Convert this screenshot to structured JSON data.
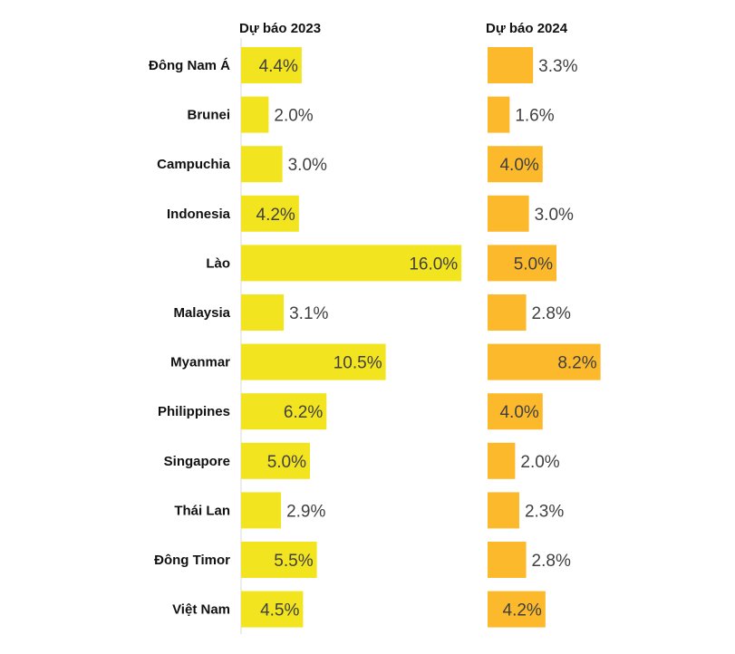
{
  "chart_data": {
    "type": "bar",
    "orientation": "horizontal",
    "categories": [
      "Đông Nam Á",
      "Brunei",
      "Campuchia",
      "Indonesia",
      "Lào",
      "Malaysia",
      "Myanmar",
      "Philippines",
      "Singapore",
      "Thái Lan",
      "Đông Timor",
      "Việt Nam"
    ],
    "series": [
      {
        "name": "Dự báo 2023",
        "color": "#f2e41f",
        "values": [
          4.4,
          2.0,
          3.0,
          4.2,
          16.0,
          3.1,
          10.5,
          6.2,
          5.0,
          2.9,
          5.5,
          4.5
        ],
        "labels": [
          "4.4%",
          "2.0%",
          "3.0%",
          "4.2%",
          "16.0%",
          "3.1%",
          "10.5%",
          "6.2%",
          "5.0%",
          "2.9%",
          "5.5%",
          "4.5%"
        ]
      },
      {
        "name": "Dự báo 2024",
        "color": "#fbb92b",
        "values": [
          3.3,
          1.6,
          4.0,
          3.0,
          5.0,
          2.8,
          8.2,
          4.0,
          2.0,
          2.3,
          2.8,
          4.2
        ],
        "labels": [
          "3.3%",
          "1.6%",
          "4.0%",
          "3.0%",
          "5.0%",
          "2.8%",
          "8.2%",
          "4.0%",
          "2.0%",
          "2.3%",
          "2.8%",
          "4.2%"
        ]
      }
    ],
    "value_unit": "%",
    "grid": false,
    "legend": "none"
  }
}
